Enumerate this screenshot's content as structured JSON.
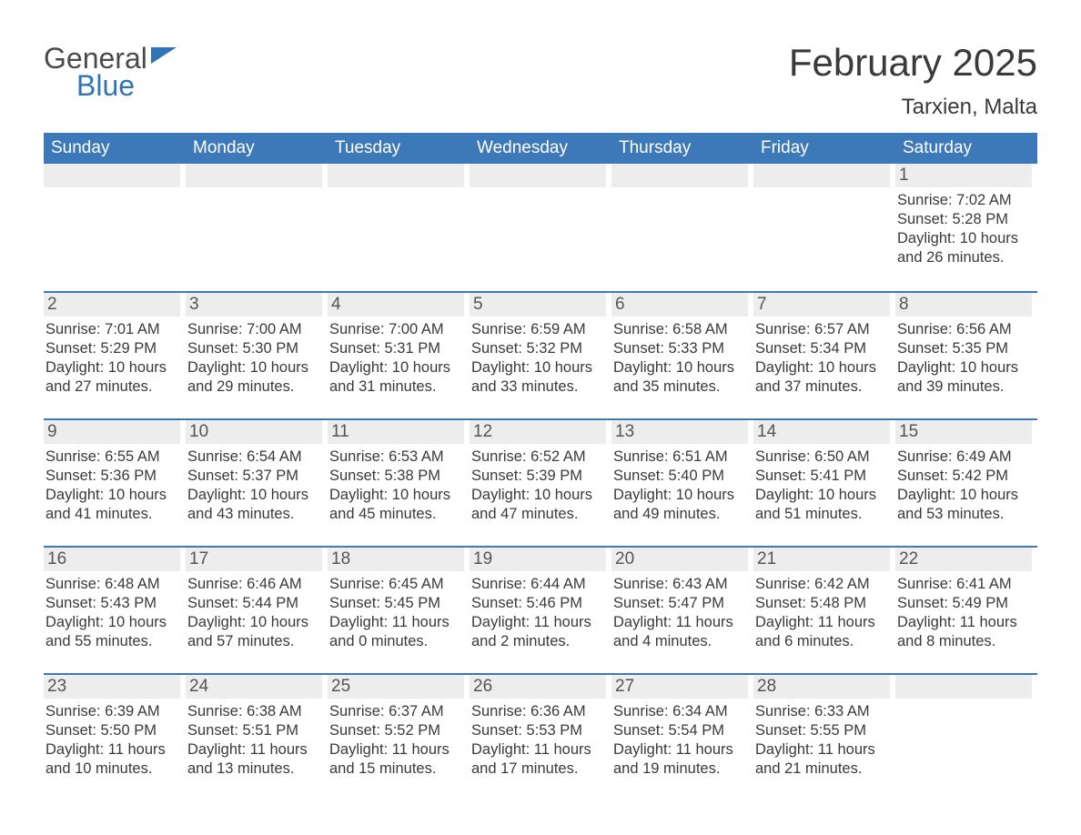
{
  "brand": {
    "word1": "General",
    "word2": "Blue"
  },
  "title": "February 2025",
  "location": "Tarxien, Malta",
  "colors": {
    "header_bg": "#3d79b8",
    "header_text": "#ffffff",
    "row_divider": "#3d79b8",
    "daynum_bg": "#ededed",
    "body_text": "#3a3a3a",
    "brand_blue": "#2f74b5",
    "page_bg": "#ffffff"
  },
  "day_headers": [
    "Sunday",
    "Monday",
    "Tuesday",
    "Wednesday",
    "Thursday",
    "Friday",
    "Saturday"
  ],
  "layout": {
    "columns": 7,
    "rows": 5,
    "first_day_column_index": 6,
    "days_in_month": 28
  },
  "days": [
    {
      "n": 1,
      "sunrise": "7:02 AM",
      "sunset": "5:28 PM",
      "daylight": "10 hours and 26 minutes."
    },
    {
      "n": 2,
      "sunrise": "7:01 AM",
      "sunset": "5:29 PM",
      "daylight": "10 hours and 27 minutes."
    },
    {
      "n": 3,
      "sunrise": "7:00 AM",
      "sunset": "5:30 PM",
      "daylight": "10 hours and 29 minutes."
    },
    {
      "n": 4,
      "sunrise": "7:00 AM",
      "sunset": "5:31 PM",
      "daylight": "10 hours and 31 minutes."
    },
    {
      "n": 5,
      "sunrise": "6:59 AM",
      "sunset": "5:32 PM",
      "daylight": "10 hours and 33 minutes."
    },
    {
      "n": 6,
      "sunrise": "6:58 AM",
      "sunset": "5:33 PM",
      "daylight": "10 hours and 35 minutes."
    },
    {
      "n": 7,
      "sunrise": "6:57 AM",
      "sunset": "5:34 PM",
      "daylight": "10 hours and 37 minutes."
    },
    {
      "n": 8,
      "sunrise": "6:56 AM",
      "sunset": "5:35 PM",
      "daylight": "10 hours and 39 minutes."
    },
    {
      "n": 9,
      "sunrise": "6:55 AM",
      "sunset": "5:36 PM",
      "daylight": "10 hours and 41 minutes."
    },
    {
      "n": 10,
      "sunrise": "6:54 AM",
      "sunset": "5:37 PM",
      "daylight": "10 hours and 43 minutes."
    },
    {
      "n": 11,
      "sunrise": "6:53 AM",
      "sunset": "5:38 PM",
      "daylight": "10 hours and 45 minutes."
    },
    {
      "n": 12,
      "sunrise": "6:52 AM",
      "sunset": "5:39 PM",
      "daylight": "10 hours and 47 minutes."
    },
    {
      "n": 13,
      "sunrise": "6:51 AM",
      "sunset": "5:40 PM",
      "daylight": "10 hours and 49 minutes."
    },
    {
      "n": 14,
      "sunrise": "6:50 AM",
      "sunset": "5:41 PM",
      "daylight": "10 hours and 51 minutes."
    },
    {
      "n": 15,
      "sunrise": "6:49 AM",
      "sunset": "5:42 PM",
      "daylight": "10 hours and 53 minutes."
    },
    {
      "n": 16,
      "sunrise": "6:48 AM",
      "sunset": "5:43 PM",
      "daylight": "10 hours and 55 minutes."
    },
    {
      "n": 17,
      "sunrise": "6:46 AM",
      "sunset": "5:44 PM",
      "daylight": "10 hours and 57 minutes."
    },
    {
      "n": 18,
      "sunrise": "6:45 AM",
      "sunset": "5:45 PM",
      "daylight": "11 hours and 0 minutes."
    },
    {
      "n": 19,
      "sunrise": "6:44 AM",
      "sunset": "5:46 PM",
      "daylight": "11 hours and 2 minutes."
    },
    {
      "n": 20,
      "sunrise": "6:43 AM",
      "sunset": "5:47 PM",
      "daylight": "11 hours and 4 minutes."
    },
    {
      "n": 21,
      "sunrise": "6:42 AM",
      "sunset": "5:48 PM",
      "daylight": "11 hours and 6 minutes."
    },
    {
      "n": 22,
      "sunrise": "6:41 AM",
      "sunset": "5:49 PM",
      "daylight": "11 hours and 8 minutes."
    },
    {
      "n": 23,
      "sunrise": "6:39 AM",
      "sunset": "5:50 PM",
      "daylight": "11 hours and 10 minutes."
    },
    {
      "n": 24,
      "sunrise": "6:38 AM",
      "sunset": "5:51 PM",
      "daylight": "11 hours and 13 minutes."
    },
    {
      "n": 25,
      "sunrise": "6:37 AM",
      "sunset": "5:52 PM",
      "daylight": "11 hours and 15 minutes."
    },
    {
      "n": 26,
      "sunrise": "6:36 AM",
      "sunset": "5:53 PM",
      "daylight": "11 hours and 17 minutes."
    },
    {
      "n": 27,
      "sunrise": "6:34 AM",
      "sunset": "5:54 PM",
      "daylight": "11 hours and 19 minutes."
    },
    {
      "n": 28,
      "sunrise": "6:33 AM",
      "sunset": "5:55 PM",
      "daylight": "11 hours and 21 minutes."
    }
  ],
  "labels": {
    "sunrise": "Sunrise: ",
    "sunset": "Sunset: ",
    "daylight": "Daylight: "
  }
}
